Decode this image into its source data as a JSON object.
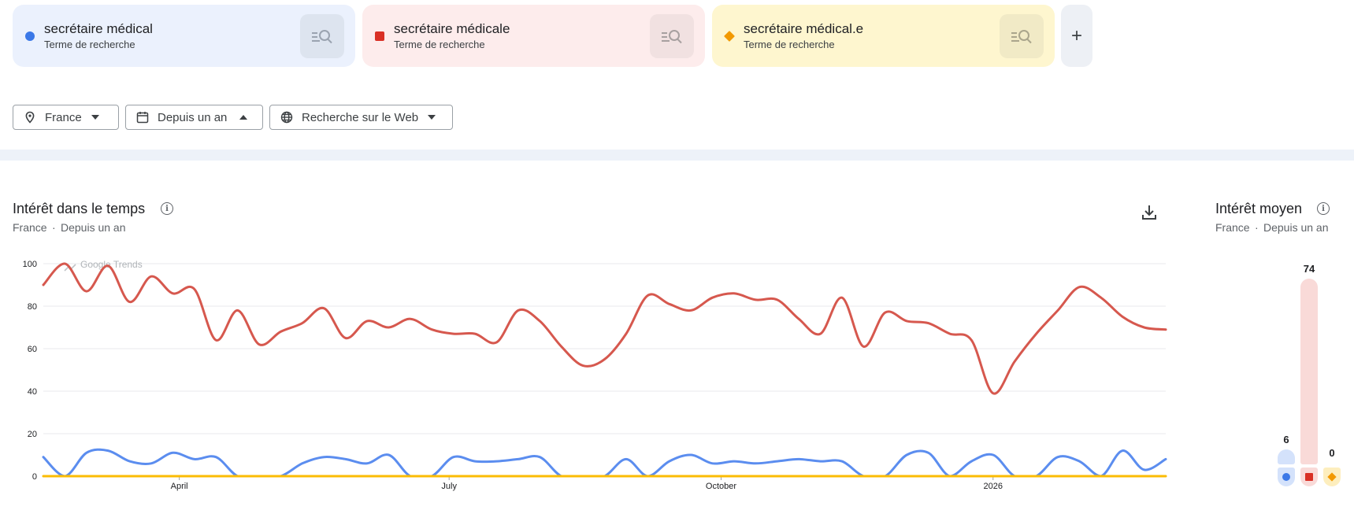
{
  "terms": [
    {
      "name": "secrétaire médical",
      "subtitle": "Terme de recherche",
      "color": "#3b78e7",
      "marker": "circle",
      "bg": "#ebf1fd",
      "btn_bg": "#dde4ef"
    },
    {
      "name": "secrétaire médicale",
      "subtitle": "Terme de recherche",
      "color": "#d93025",
      "marker": "square",
      "bg": "#fdecec",
      "btn_bg": "#f1e1e1"
    },
    {
      "name": "secrétaire médical.e",
      "subtitle": "Terme de recherche",
      "color": "#f29900",
      "marker": "diamond",
      "bg": "#fef6cf",
      "btn_bg": "#f1eac6"
    }
  ],
  "add_label": "+",
  "filters": {
    "location": "France",
    "period": "Depuis un an",
    "source": "Recherche sur le Web"
  },
  "interest_over_time": {
    "title": "Intérêt dans le temps",
    "subtitle_region": "France",
    "subtitle_sep": "·",
    "subtitle_period": "Depuis un an",
    "watermark": "Google Trends"
  },
  "average_interest": {
    "title": "Intérêt moyen",
    "subtitle_region": "France",
    "subtitle_sep": "·",
    "subtitle_period": "Depuis un an",
    "values": [
      6,
      74,
      0
    ]
  },
  "chart_data": {
    "type": "line",
    "ylim": [
      0,
      100
    ],
    "yticks": [
      0,
      20,
      40,
      60,
      80,
      100
    ],
    "xtick_labels": [
      "April",
      "July",
      "October",
      "2026"
    ],
    "xtick_positions": [
      6.3,
      18.8,
      31.4,
      44
    ],
    "grid": true,
    "series": [
      {
        "name": "secrétaire médicale",
        "color": "#d6584e",
        "values": [
          90,
          100,
          87,
          99,
          82,
          94,
          86,
          88,
          64,
          78,
          62,
          68,
          72,
          79,
          65,
          73,
          70,
          74,
          69,
          67,
          67,
          63,
          78,
          73,
          61,
          52,
          55,
          67,
          85,
          81,
          78,
          84,
          86,
          83,
          83,
          74,
          67,
          84,
          61,
          77,
          73,
          72,
          67,
          64,
          39,
          54,
          67,
          78,
          89,
          84,
          75,
          70,
          69
        ]
      },
      {
        "name": "secrétaire médical",
        "color": "#5b8def",
        "values": [
          9,
          0,
          11,
          12,
          7,
          6,
          11,
          8,
          9,
          0,
          0,
          0,
          6,
          9,
          8,
          6,
          10,
          0,
          0,
          9,
          7,
          7,
          8,
          9,
          0,
          0,
          0,
          8,
          0,
          7,
          10,
          6,
          7,
          6,
          7,
          8,
          7,
          7,
          0,
          0,
          10,
          11,
          0,
          7,
          10,
          0,
          0,
          9,
          7,
          0,
          12,
          3,
          8
        ]
      },
      {
        "name": "secrétaire médical.e",
        "color": "#fbbc04",
        "values": [
          0,
          0,
          0,
          0,
          0,
          0,
          0,
          0,
          0,
          0,
          0,
          0,
          0,
          0,
          0,
          0,
          0,
          0,
          0,
          0,
          0,
          0,
          0,
          0,
          0,
          0,
          0,
          0,
          0,
          0,
          0,
          0,
          0,
          0,
          0,
          0,
          0,
          0,
          0,
          0,
          0,
          0,
          0,
          0,
          0,
          0,
          0,
          0,
          0,
          0,
          0,
          0,
          0
        ]
      }
    ]
  },
  "icons": {
    "term_search": "search-list-icon",
    "location": "pin-icon",
    "period": "calendar-icon",
    "source": "globe-icon",
    "info": "info-icon",
    "download": "download-icon"
  }
}
